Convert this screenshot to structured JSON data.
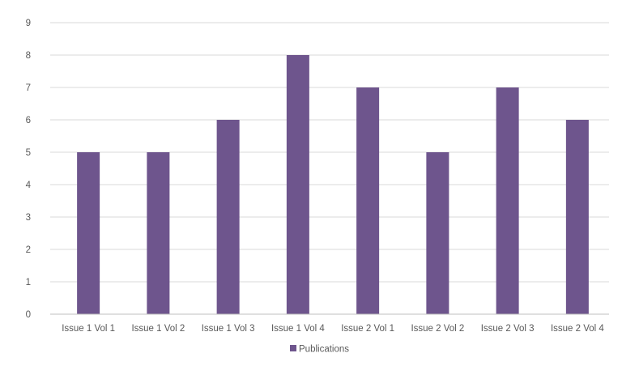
{
  "chart_data": {
    "type": "bar",
    "title": "",
    "xlabel": "",
    "ylabel": "",
    "categories": [
      "Issue 1 Vol 1",
      "Issue 1 Vol 2",
      "Issue 1 Vol 3",
      "Issue 1 Vol 4",
      "Issue 2 Vol 1",
      "Issue 2 Vol 2",
      "Issue 2 Vol 3",
      "Issue 2 Vol 4"
    ],
    "series": [
      {
        "name": "Publications",
        "values": [
          5,
          5,
          6,
          8,
          7,
          5,
          7,
          6
        ],
        "color": "#6E558D"
      }
    ],
    "ylim": [
      0,
      9
    ],
    "yticks": [
      "0",
      "1",
      "2",
      "3",
      "4",
      "5",
      "6",
      "7",
      "8",
      "9"
    ],
    "grid": true,
    "legend_position": "bottom",
    "colors": {
      "grid": "#D9D9D9",
      "axis": "#BFBFBF",
      "tick_text": "#595959"
    }
  }
}
